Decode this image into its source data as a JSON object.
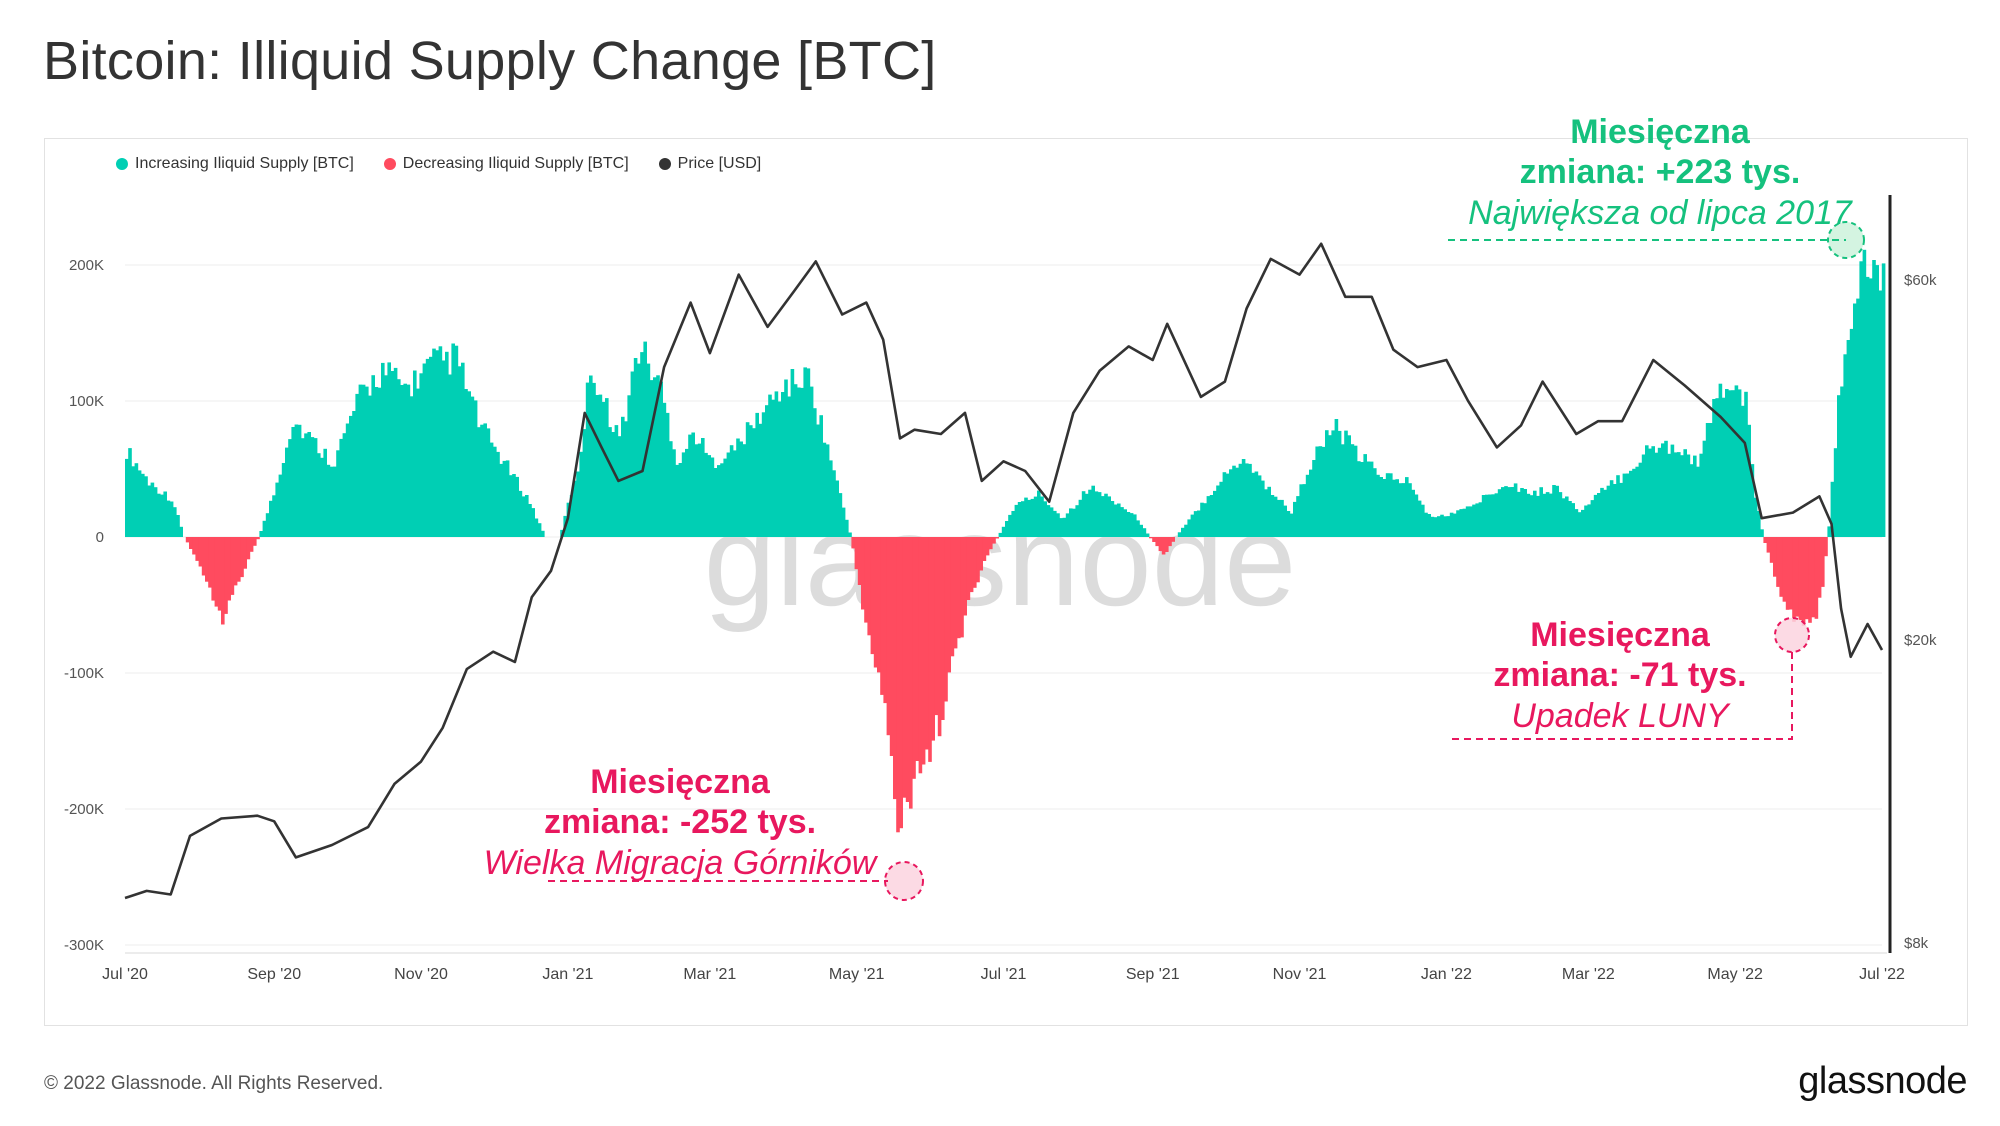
{
  "page": {
    "title": "Bitcoin: Illiquid Supply Change [BTC]",
    "copyright": "© 2022 Glassnode. All Rights Reserved.",
    "logo": "glassnode",
    "watermark": "glassnode"
  },
  "legend": [
    {
      "label": "Increasing Iliquid Supply [BTC]",
      "color": "#00cfb4"
    },
    {
      "label": "Decreasing Iliquid Supply [BTC]",
      "color": "#ff4b5f"
    },
    {
      "label": "Price [USD]",
      "color": "#333333"
    }
  ],
  "annotations": {
    "max": {
      "line1": "Miesięczna",
      "line2": "zmiana: +223 tys.",
      "line3": "Największa od lipca 2017",
      "color": "#15c17e"
    },
    "migration": {
      "line1": "Miesięczna",
      "line2": "zmiana: -252 tys.",
      "line3": "Wielka Migracja Górników",
      "color": "#e8185e"
    },
    "luna": {
      "line1": "Miesięczna",
      "line2": "zmiana: -71 tys.",
      "line3": "Upadek LUNY",
      "color": "#e8185e"
    }
  },
  "chart_data": {
    "type": "area",
    "title": "Bitcoin: Illiquid Supply Change [BTC]",
    "x_ticks": [
      "Jul '20",
      "Sep '20",
      "Nov '20",
      "Jan '21",
      "Mar '21",
      "May '21",
      "Jul '21",
      "Sep '21",
      "Nov '21",
      "Jan '22",
      "Mar '22",
      "May '22",
      "Jul '22"
    ],
    "y_left": {
      "ticks": [
        "200K",
        "100K",
        "0",
        "-100K",
        "-200K",
        "-300K"
      ],
      "values": [
        200000,
        100000,
        0,
        -100000,
        -200000,
        -300000
      ],
      "ylim": [
        -300000,
        200000
      ]
    },
    "y_right": {
      "ticks": [
        "$60k",
        "$20k",
        "$8k"
      ],
      "values": [
        60000,
        20000,
        8000
      ],
      "scale": "log"
    },
    "series": [
      {
        "name": "Illiquid Supply Change [BTC]",
        "x": [
          "2020-07-01",
          "2020-07-10",
          "2020-07-20",
          "2020-07-25",
          "2020-08-01",
          "2020-08-10",
          "2020-08-20",
          "2020-08-25",
          "2020-09-01",
          "2020-09-08",
          "2020-09-15",
          "2020-09-25",
          "2020-10-05",
          "2020-10-15",
          "2020-10-25",
          "2020-11-05",
          "2020-11-15",
          "2020-11-25",
          "2020-12-05",
          "2020-12-15",
          "2020-12-22",
          "2020-12-28",
          "2021-01-05",
          "2021-01-10",
          "2021-01-15",
          "2021-01-22",
          "2021-01-30",
          "2021-02-08",
          "2021-02-15",
          "2021-02-22",
          "2021-03-01",
          "2021-03-10",
          "2021-03-20",
          "2021-03-30",
          "2021-04-10",
          "2021-04-20",
          "2021-04-28",
          "2021-05-05",
          "2021-05-12",
          "2021-05-18",
          "2021-05-25",
          "2021-06-01",
          "2021-06-08",
          "2021-06-15",
          "2021-06-22",
          "2021-06-28",
          "2021-07-05",
          "2021-07-15",
          "2021-07-25",
          "2021-08-05",
          "2021-08-15",
          "2021-08-25",
          "2021-08-30",
          "2021-09-05",
          "2021-09-10",
          "2021-09-18",
          "2021-09-28",
          "2021-10-08",
          "2021-10-18",
          "2021-10-28",
          "2021-11-05",
          "2021-11-15",
          "2021-11-25",
          "2021-12-05",
          "2021-12-15",
          "2021-12-25",
          "2022-01-05",
          "2022-01-15",
          "2022-01-25",
          "2022-02-05",
          "2022-02-15",
          "2022-02-25",
          "2022-03-05",
          "2022-03-15",
          "2022-03-25",
          "2022-04-05",
          "2022-04-15",
          "2022-04-25",
          "2022-05-05",
          "2022-05-08",
          "2022-05-12",
          "2022-05-18",
          "2022-05-25",
          "2022-06-01",
          "2022-06-05",
          "2022-06-08",
          "2022-06-12",
          "2022-06-18",
          "2022-06-25",
          "2022-07-01"
        ],
        "y": [
          70000,
          45000,
          30000,
          0,
          -25000,
          -65000,
          -20000,
          0,
          40000,
          95000,
          80000,
          60000,
          110000,
          135000,
          120000,
          140000,
          145000,
          90000,
          60000,
          30000,
          0,
          0,
          60000,
          140000,
          110000,
          80000,
          155000,
          120000,
          60000,
          85000,
          60000,
          70000,
          95000,
          120000,
          130000,
          60000,
          0,
          -80000,
          -130000,
          -240000,
          -200000,
          -170000,
          -110000,
          -60000,
          -20000,
          0,
          25000,
          35000,
          15000,
          40000,
          30000,
          15000,
          0,
          -15000,
          0,
          20000,
          45000,
          65000,
          40000,
          20000,
          60000,
          90000,
          65000,
          50000,
          45000,
          15000,
          20000,
          30000,
          45000,
          35000,
          40000,
          20000,
          35000,
          50000,
          70000,
          75000,
          60000,
          125000,
          110000,
          40000,
          0,
          -40000,
          -65000,
          -71000,
          -50000,
          0,
          100000,
          190000,
          220000,
          210000
        ]
      },
      {
        "name": "Price [USD]",
        "x": [
          "2020-07-01",
          "2020-07-10",
          "2020-07-20",
          "2020-07-28",
          "2020-08-10",
          "2020-08-25",
          "2020-09-01",
          "2020-09-10",
          "2020-09-25",
          "2020-10-10",
          "2020-10-21",
          "2020-11-01",
          "2020-11-10",
          "2020-11-20",
          "2020-12-01",
          "2020-12-10",
          "2020-12-17",
          "2020-12-25",
          "2021-01-01",
          "2021-01-08",
          "2021-01-15",
          "2021-01-22",
          "2021-02-01",
          "2021-02-10",
          "2021-02-21",
          "2021-03-01",
          "2021-03-13",
          "2021-03-25",
          "2021-04-05",
          "2021-04-14",
          "2021-04-25",
          "2021-05-05",
          "2021-05-12",
          "2021-05-19",
          "2021-05-25",
          "2021-06-05",
          "2021-06-15",
          "2021-06-22",
          "2021-07-01",
          "2021-07-10",
          "2021-07-20",
          "2021-07-30",
          "2021-08-10",
          "2021-08-22",
          "2021-09-01",
          "2021-09-07",
          "2021-09-21",
          "2021-10-01",
          "2021-10-10",
          "2021-10-20",
          "2021-11-01",
          "2021-11-10",
          "2021-11-20",
          "2021-12-01",
          "2021-12-10",
          "2021-12-20",
          "2022-01-01",
          "2022-01-10",
          "2022-01-22",
          "2022-02-01",
          "2022-02-10",
          "2022-02-24",
          "2022-03-05",
          "2022-03-15",
          "2022-03-28",
          "2022-04-10",
          "2022-04-25",
          "2022-05-05",
          "2022-05-12",
          "2022-05-25",
          "2022-06-05",
          "2022-06-10",
          "2022-06-14",
          "2022-06-18",
          "2022-06-25",
          "2022-07-01"
        ],
        "y": [
          9100,
          9300,
          9200,
          11000,
          11600,
          11700,
          11500,
          10300,
          10700,
          11300,
          12900,
          13800,
          15300,
          18300,
          19300,
          18700,
          22800,
          24700,
          29000,
          40000,
          36000,
          32500,
          33500,
          46000,
          56000,
          48000,
          61000,
          52000,
          58000,
          63500,
          54000,
          56000,
          50000,
          37000,
          38000,
          37500,
          40000,
          32500,
          34500,
          33500,
          30500,
          40000,
          45500,
          49000,
          47000,
          52500,
          42000,
          44000,
          55000,
          64000,
          61000,
          67000,
          57000,
          57000,
          48500,
          46000,
          47000,
          41500,
          36000,
          38500,
          44000,
          37500,
          39000,
          39000,
          47000,
          43500,
          39500,
          36500,
          29000,
          29500,
          31000,
          28500,
          22000,
          19000,
          21000,
          19400
        ]
      }
    ]
  }
}
